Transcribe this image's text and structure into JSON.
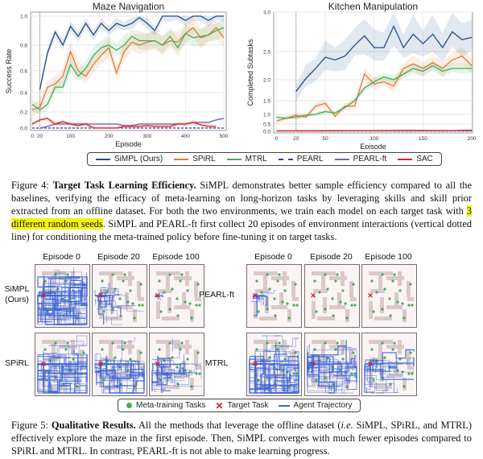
{
  "chart_data": [
    {
      "type": "line",
      "title": "Maze Navigation",
      "xlabel": "Episode",
      "ylabel": "Success Rate",
      "xlim": [
        0,
        500
      ],
      "ylim": [
        0,
        1.0
      ],
      "xticks": [
        "0",
        "20",
        "100",
        "200",
        "300",
        "400",
        "500"
      ],
      "yticks": [
        "0.0",
        "0.2",
        "0.4",
        "0.6",
        "0.8",
        "1.0"
      ],
      "grid": true,
      "vline_x": 20,
      "series": [
        {
          "name": "SiMPL (Ours)",
          "color": "#1f4e8c",
          "dash": false,
          "spread": 0.04,
          "x": [
            20,
            40,
            60,
            80,
            100,
            120,
            140,
            160,
            180,
            200,
            220,
            240,
            260,
            280,
            300,
            320,
            340,
            360,
            380,
            400,
            420,
            440,
            460,
            480,
            500
          ],
          "y": [
            0.43,
            0.74,
            0.89,
            0.8,
            0.93,
            0.86,
            0.95,
            0.87,
            0.95,
            0.9,
            0.95,
            0.93,
            0.95,
            0.99,
            0.95,
            0.9,
            1.0,
            1.0,
            1.0,
            0.97,
            1.0,
            1.0,
            0.97,
            1.0,
            1.0
          ]
        },
        {
          "name": "SPiRL",
          "color": "#e8792f",
          "dash": false,
          "spread": 0.08,
          "x": [
            0,
            20,
            40,
            60,
            80,
            100,
            120,
            140,
            160,
            180,
            200,
            220,
            240,
            260,
            280,
            300,
            320,
            340,
            360,
            380,
            400,
            420,
            440,
            460,
            480,
            500
          ],
          "y": [
            0.22,
            0.25,
            0.45,
            0.48,
            0.55,
            0.75,
            0.6,
            0.55,
            0.65,
            0.72,
            0.78,
            0.58,
            0.75,
            0.82,
            0.8,
            0.82,
            0.83,
            0.8,
            0.83,
            0.82,
            0.88,
            0.92,
            0.85,
            0.87,
            0.92,
            0.85
          ]
        },
        {
          "name": "MTRL",
          "color": "#4caa5a",
          "dash": false,
          "spread": 0.07,
          "x": [
            0,
            20,
            40,
            60,
            80,
            100,
            120,
            140,
            160,
            180,
            200,
            220,
            240,
            260,
            280,
            300,
            320,
            340,
            360,
            380,
            400,
            420,
            440,
            460,
            480,
            500
          ],
          "y": [
            0.28,
            0.22,
            0.28,
            0.45,
            0.45,
            0.65,
            0.55,
            0.62,
            0.72,
            0.78,
            0.8,
            0.76,
            0.8,
            0.86,
            0.83,
            0.83,
            0.83,
            0.8,
            0.86,
            0.78,
            0.88,
            0.85,
            0.86,
            0.87,
            0.9,
            0.92
          ]
        },
        {
          "name": "PEARL",
          "color": "#3a3a9a",
          "dash": true,
          "spread": 0,
          "x": [
            0,
            500
          ],
          "y": [
            0,
            0
          ]
        },
        {
          "name": "PEARL-ft",
          "color": "#7a62b8",
          "dash": false,
          "spread": 0.02,
          "x": [
            20,
            40,
            60,
            80,
            100,
            120,
            140,
            160,
            180,
            200,
            220,
            240,
            260,
            280,
            300,
            320,
            340,
            360,
            380,
            400,
            420,
            440,
            460,
            480,
            500
          ],
          "y": [
            0,
            0.02,
            0.05,
            0.05,
            0.05,
            0.05,
            0.05,
            0.05,
            0.05,
            0.05,
            0.05,
            0.03,
            0.03,
            0.05,
            0.05,
            0.05,
            0.05,
            0.05,
            0.05,
            0.05,
            0.07,
            0.07,
            0.07,
            0.1,
            0.12
          ]
        },
        {
          "name": "SAC",
          "color": "#d62728",
          "dash": false,
          "spread": 0.03,
          "x": [
            0,
            20,
            40,
            60,
            80,
            100,
            120,
            140,
            160,
            180,
            200,
            220,
            240,
            260,
            280,
            300,
            320,
            340,
            360,
            380,
            400,
            420,
            440,
            460,
            480
          ],
          "y": [
            0.05,
            0.1,
            0.12,
            0.05,
            0.08,
            0.05,
            0.03,
            0.05,
            0,
            0,
            0,
            0,
            0.02,
            0.02,
            0.02,
            0.03,
            0.02,
            0.02,
            0.02,
            0.05,
            0.05,
            0.07,
            0.04,
            0.02,
            0.02
          ]
        }
      ]
    },
    {
      "type": "line",
      "title": "Kitchen Manipulation",
      "xlabel": "Episode",
      "ylabel": "Completed Subtasks",
      "xlim": [
        0,
        200
      ],
      "ylim": [
        0,
        3.0
      ],
      "xticks": [
        "0",
        "20",
        "50",
        "100",
        "150",
        "200"
      ],
      "yticks": [
        "0.0",
        "0.5",
        "1.0",
        "1.5",
        "2.0",
        "2.5",
        "3.0"
      ],
      "grid": true,
      "vline_x": 20,
      "series": [
        {
          "name": "SiMPL (Ours)",
          "color": "#1f4e8c",
          "dash": false,
          "spread": 0.25,
          "x": [
            20,
            30,
            40,
            50,
            60,
            70,
            80,
            90,
            100,
            110,
            120,
            130,
            140,
            150,
            160,
            170,
            180,
            190,
            200
          ],
          "y": [
            1.72,
            2.02,
            2.2,
            2.4,
            2.35,
            2.42,
            2.58,
            2.7,
            2.55,
            2.55,
            2.82,
            2.55,
            2.72,
            2.6,
            2.72,
            2.55,
            2.75,
            2.65,
            2.68
          ]
        },
        {
          "name": "SPiRL",
          "color": "#e8792f",
          "dash": false,
          "spread": 0.15,
          "x": [
            0,
            10,
            20,
            30,
            40,
            50,
            60,
            70,
            80,
            90,
            100,
            110,
            120,
            130,
            140,
            150,
            160,
            170,
            180,
            190,
            200
          ],
          "y": [
            0.65,
            0.8,
            0.95,
            0.85,
            1.3,
            1.4,
            0.9,
            1.3,
            1.3,
            2.1,
            1.9,
            1.95,
            1.85,
            2.2,
            2.28,
            2.2,
            2.3,
            2.2,
            2.35,
            2.42,
            2.25
          ]
        },
        {
          "name": "MTRL",
          "color": "#4caa5a",
          "dash": false,
          "spread": 0.1,
          "x": [
            0,
            10,
            20,
            30,
            40,
            50,
            60,
            70,
            80,
            90,
            100,
            110,
            120,
            130,
            140,
            150,
            160,
            170,
            180,
            190,
            200
          ],
          "y": [
            0.85,
            0.8,
            0.85,
            0.95,
            1.0,
            1.1,
            1.05,
            1.25,
            1.5,
            1.8,
            1.95,
            2.05,
            2.0,
            2.1,
            2.2,
            2.15,
            2.25,
            2.15,
            2.2,
            2.2,
            2.2
          ]
        },
        {
          "name": "PEARL",
          "color": "#3a3a9a",
          "dash": true,
          "spread": 0,
          "x": [
            0,
            200
          ],
          "y": [
            0.02,
            0.02
          ]
        },
        {
          "name": "PEARL-ft",
          "color": "#7a62b8",
          "dash": false,
          "spread": 0.03,
          "x": [
            20,
            60,
            100,
            140,
            180,
            200
          ],
          "y": [
            0.03,
            0.05,
            0.05,
            0.06,
            0.05,
            0.08
          ]
        },
        {
          "name": "SAC",
          "color": "#d62728",
          "dash": false,
          "spread": 0.03,
          "x": [
            0,
            40,
            80,
            120,
            160,
            200
          ],
          "y": [
            0.03,
            0.03,
            0.05,
            0.05,
            0.04,
            0.05
          ]
        }
      ]
    }
  ],
  "fig4_legend": {
    "items": [
      {
        "label": "SiMPL (Ours)",
        "color": "#1f4e8c",
        "dash": false
      },
      {
        "label": "SPiRL",
        "color": "#e8792f",
        "dash": false
      },
      {
        "label": "MTRL",
        "color": "#4caa5a",
        "dash": false
      },
      {
        "label": "PEARL",
        "color": "#3a3a9a",
        "dash": true
      },
      {
        "label": "PEARL-ft",
        "color": "#7a62b8",
        "dash": false
      },
      {
        "label": "SAC",
        "color": "#d62728",
        "dash": false
      }
    ]
  },
  "fig4_caption": {
    "label": "Figure 4:",
    "bold": "Target Task Learning Efficiency.",
    "text1": " SiMPL demonstrates better sample efficiency compared to all the baselines, verifying the efficacy of meta-learning on long-horizon tasks by leveraging skills and skill prior extracted from an offline dataset. For both the two environments, we train each model on each target task with ",
    "highlight": "3 different random seeds",
    "text2": ". SiMPL and PEARL-ft first collect 20 episodes of environment interactions (vertical dotted line) for conditioning the meta-trained policy before fine-tuning it on target tasks."
  },
  "fig5": {
    "column_headers": [
      "Episode 0",
      "Episode 20",
      "Episode 100"
    ],
    "groups": [
      {
        "rows": [
          {
            "label": "SiMPL (Ours)",
            "exploration": [
              1.0,
              0.45,
              0.12
            ]
          },
          {
            "label": "SPiRL",
            "exploration": [
              0.9,
              0.75,
              0.6
            ]
          }
        ]
      },
      {
        "rows": [
          {
            "label": "PEARL-ft",
            "exploration": [
              0.25,
              0.03,
              0.01
            ]
          },
          {
            "label": "MTRL",
            "exploration": [
              0.95,
              0.8,
              0.55
            ]
          }
        ]
      }
    ],
    "legend": {
      "tasks": "Meta-training Tasks",
      "target": "Target Task",
      "trajectory": "Agent Trajectory"
    },
    "colors": {
      "task": "#4caa5a",
      "target": "#e01818",
      "trajectory": "#3a64d8",
      "wall": "#d9c9c9"
    }
  },
  "fig5_caption": {
    "label": "Figure 5:",
    "bold": "Qualitative Results.",
    "text1": " All the methods that leverage the offline dataset (",
    "italic": "i.e.",
    "text2": " SiMPL, SPiRL, and MTRL) effectively explore the maze in the first episode. Then, SiMPL converges with much fewer episodes compared to SPiRL and MTRL. In contrast, PEARL-ft is not able to make learning progress."
  }
}
